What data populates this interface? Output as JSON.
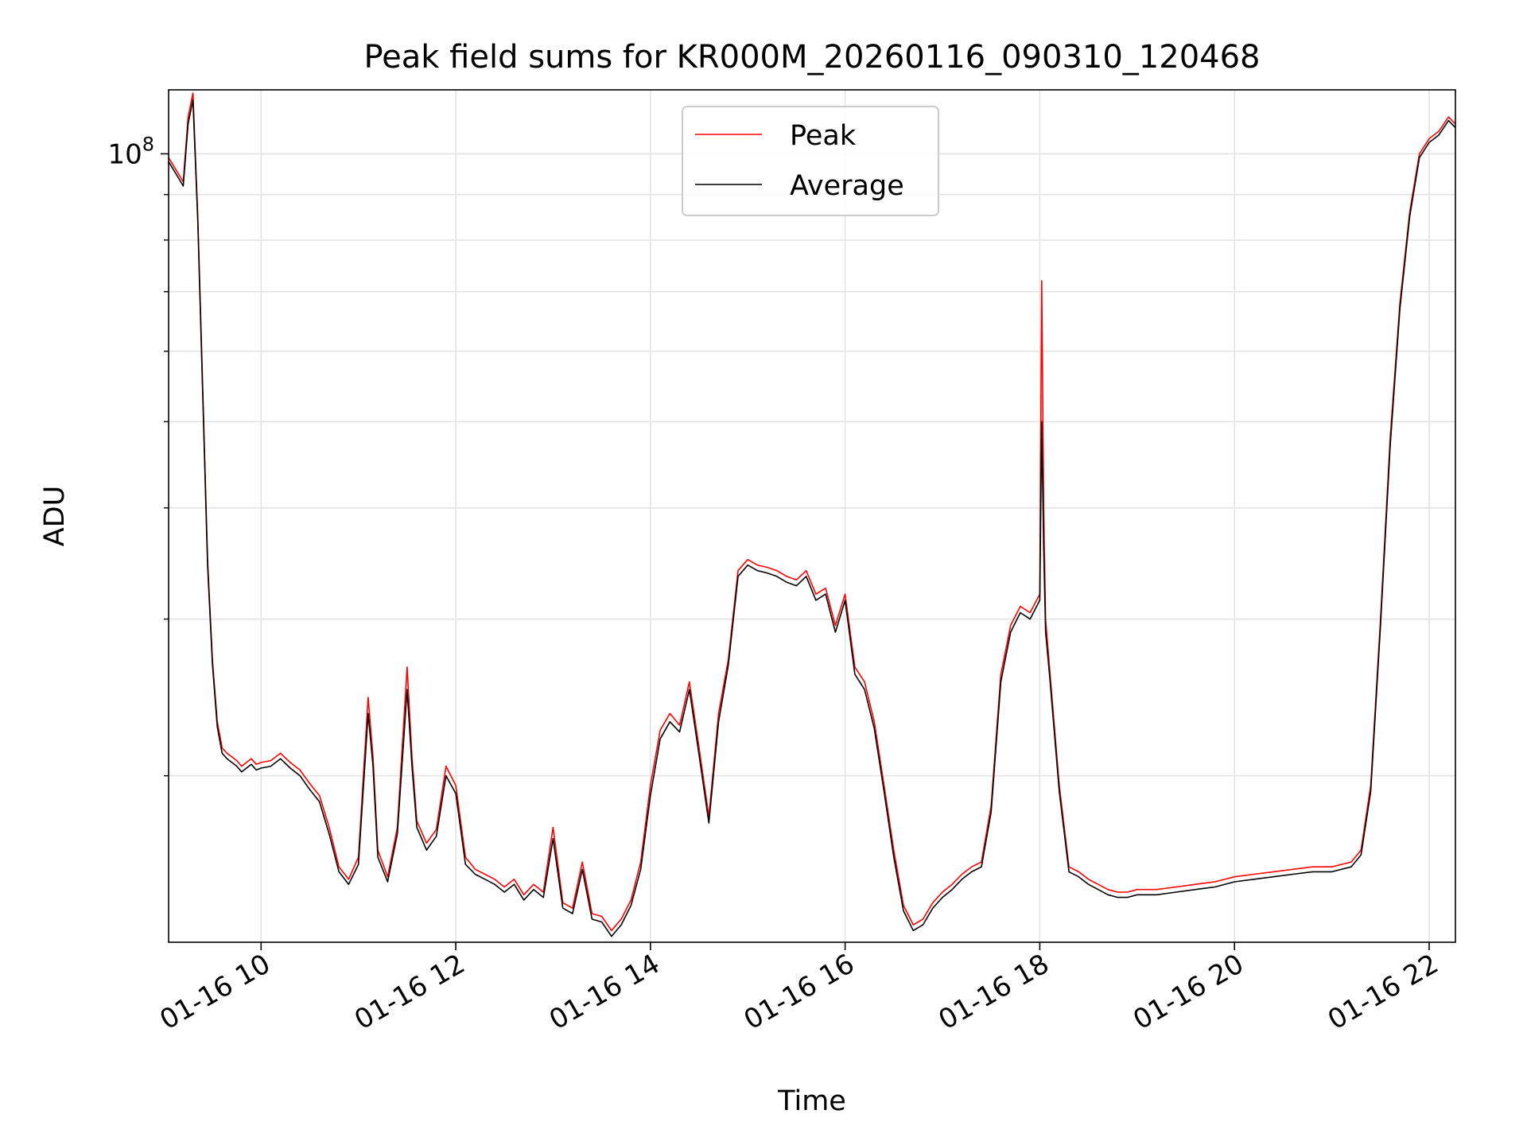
{
  "chart_data": {
    "type": "line",
    "title": "Peak field sums for KR000M_20260116_090310_120468",
    "xlabel": "Time",
    "ylabel": "ADU",
    "y_scale": "log",
    "ylim": [
      13000000,
      118000000
    ],
    "xlim_hours": [
      9.05,
      22.27
    ],
    "grid": true,
    "legend_position": "upper-center",
    "x_ticks": [
      {
        "hour": 10,
        "label": "01-16 10"
      },
      {
        "hour": 12,
        "label": "01-16 12"
      },
      {
        "hour": 14,
        "label": "01-16 14"
      },
      {
        "hour": 16,
        "label": "01-16 16"
      },
      {
        "hour": 18,
        "label": "01-16 18"
      },
      {
        "hour": 20,
        "label": "01-16 20"
      },
      {
        "hour": 22,
        "label": "01-16 22"
      }
    ],
    "y_major_ticks": [
      {
        "value": 100000000,
        "base": "10",
        "exp": "8"
      }
    ],
    "y_minor_grid": [
      20000000,
      30000000,
      40000000,
      50000000,
      60000000,
      70000000,
      80000000,
      90000000
    ],
    "series": [
      {
        "name": "Peak",
        "color": "#ff0000",
        "hours": [
          9.05,
          9.1,
          9.15,
          9.2,
          9.25,
          9.3,
          9.35,
          9.4,
          9.45,
          9.5,
          9.55,
          9.6,
          9.65,
          9.7,
          9.75,
          9.8,
          9.85,
          9.9,
          9.95,
          10.0,
          10.1,
          10.2,
          10.3,
          10.4,
          10.5,
          10.6,
          10.7,
          10.8,
          10.9,
          11.0,
          11.1,
          11.15,
          11.2,
          11.3,
          11.4,
          11.5,
          11.55,
          11.6,
          11.7,
          11.8,
          11.9,
          12.0,
          12.1,
          12.2,
          12.3,
          12.4,
          12.5,
          12.6,
          12.7,
          12.8,
          12.9,
          13.0,
          13.1,
          13.2,
          13.3,
          13.4,
          13.5,
          13.6,
          13.7,
          13.8,
          13.9,
          14.0,
          14.1,
          14.2,
          14.3,
          14.4,
          14.5,
          14.6,
          14.7,
          14.8,
          14.9,
          15.0,
          15.1,
          15.2,
          15.3,
          15.4,
          15.5,
          15.6,
          15.7,
          15.8,
          15.9,
          16.0,
          16.1,
          16.2,
          16.3,
          16.4,
          16.5,
          16.6,
          16.7,
          16.8,
          16.9,
          17.0,
          17.1,
          17.2,
          17.3,
          17.4,
          17.5,
          17.6,
          17.7,
          17.8,
          17.9,
          18.0,
          18.02,
          18.04,
          18.06,
          18.1,
          18.2,
          18.3,
          18.4,
          18.5,
          18.6,
          18.7,
          18.8,
          18.9,
          19.0,
          19.2,
          19.4,
          19.6,
          19.8,
          20.0,
          20.2,
          20.4,
          20.6,
          20.8,
          21.0,
          21.2,
          21.3,
          21.4,
          21.5,
          21.6,
          21.7,
          21.8,
          21.9,
          22.0,
          22.1,
          22.2,
          22.27
        ],
        "values": [
          99000000,
          97000000,
          95000000,
          93000000,
          110000000,
          117000000,
          85000000,
          55000000,
          35000000,
          27000000,
          23000000,
          21500000,
          21200000,
          21000000,
          20800000,
          20500000,
          20700000,
          20900000,
          20600000,
          20700000,
          20800000,
          21200000,
          20700000,
          20300000,
          19600000,
          19000000,
          17500000,
          15800000,
          15300000,
          16200000,
          24500000,
          21000000,
          16500000,
          15400000,
          17500000,
          26500000,
          21000000,
          17800000,
          16800000,
          17400000,
          20500000,
          19500000,
          16200000,
          15700000,
          15500000,
          15300000,
          15000000,
          15300000,
          14700000,
          15100000,
          14800000,
          17500000,
          14400000,
          14200000,
          16000000,
          14000000,
          13900000,
          13400000,
          13800000,
          14500000,
          16000000,
          19500000,
          22500000,
          23500000,
          22800000,
          25500000,
          21500000,
          18000000,
          23500000,
          27000000,
          34000000,
          35000000,
          34500000,
          34300000,
          34000000,
          33500000,
          33200000,
          34000000,
          32000000,
          32500000,
          29500000,
          32000000,
          26500000,
          25500000,
          23000000,
          19500000,
          16500000,
          14300000,
          13600000,
          13800000,
          14400000,
          14800000,
          15100000,
          15500000,
          15800000,
          16000000,
          18500000,
          26000000,
          29500000,
          31000000,
          30500000,
          32000000,
          72000000,
          40000000,
          30000000,
          26500000,
          19500000,
          15800000,
          15600000,
          15300000,
          15100000,
          14900000,
          14800000,
          14800000,
          14900000,
          14900000,
          15000000,
          15100000,
          15200000,
          15400000,
          15500000,
          15600000,
          15700000,
          15800000,
          15800000,
          16000000,
          16500000,
          19500000,
          30000000,
          48000000,
          68000000,
          86000000,
          100000000,
          104000000,
          106000000,
          110000000,
          108000000
        ]
      },
      {
        "name": "Average",
        "color": "#000000",
        "hours": [
          9.05,
          9.1,
          9.15,
          9.2,
          9.25,
          9.3,
          9.35,
          9.4,
          9.45,
          9.5,
          9.55,
          9.6,
          9.65,
          9.7,
          9.75,
          9.8,
          9.85,
          9.9,
          9.95,
          10.0,
          10.1,
          10.2,
          10.3,
          10.4,
          10.5,
          10.6,
          10.7,
          10.8,
          10.9,
          11.0,
          11.1,
          11.15,
          11.2,
          11.3,
          11.4,
          11.5,
          11.55,
          11.6,
          11.7,
          11.8,
          11.9,
          12.0,
          12.1,
          12.2,
          12.3,
          12.4,
          12.5,
          12.6,
          12.7,
          12.8,
          12.9,
          13.0,
          13.1,
          13.2,
          13.3,
          13.4,
          13.5,
          13.6,
          13.7,
          13.8,
          13.9,
          14.0,
          14.1,
          14.2,
          14.3,
          14.4,
          14.5,
          14.6,
          14.7,
          14.8,
          14.9,
          15.0,
          15.1,
          15.2,
          15.3,
          15.4,
          15.5,
          15.6,
          15.7,
          15.8,
          15.9,
          16.0,
          16.1,
          16.2,
          16.3,
          16.4,
          16.5,
          16.6,
          16.7,
          16.8,
          16.9,
          17.0,
          17.1,
          17.2,
          17.3,
          17.4,
          17.5,
          17.6,
          17.7,
          17.8,
          17.9,
          18.0,
          18.02,
          18.04,
          18.06,
          18.1,
          18.2,
          18.3,
          18.4,
          18.5,
          18.6,
          18.7,
          18.8,
          18.9,
          19.0,
          19.2,
          19.4,
          19.6,
          19.8,
          20.0,
          20.2,
          20.4,
          20.6,
          20.8,
          21.0,
          21.2,
          21.3,
          21.4,
          21.5,
          21.6,
          21.7,
          21.8,
          21.9,
          22.0,
          22.1,
          22.2,
          22.27
        ],
        "values": [
          98000000,
          96000000,
          94000000,
          92000000,
          108000000,
          115000000,
          84000000,
          54000000,
          34500000,
          26700000,
          22700000,
          21200000,
          20900000,
          20700000,
          20500000,
          20200000,
          20400000,
          20600000,
          20300000,
          20400000,
          20500000,
          20900000,
          20400000,
          20000000,
          19300000,
          18700000,
          17200000,
          15600000,
          15100000,
          15900000,
          23500000,
          20500000,
          16200000,
          15200000,
          17200000,
          25000000,
          20500000,
          17500000,
          16500000,
          17100000,
          20000000,
          19100000,
          15900000,
          15500000,
          15300000,
          15100000,
          14800000,
          15100000,
          14500000,
          14900000,
          14600000,
          17000000,
          14200000,
          14000000,
          15700000,
          13800000,
          13700000,
          13200000,
          13600000,
          14300000,
          15700000,
          19000000,
          22000000,
          23000000,
          22400000,
          25000000,
          21100000,
          17700000,
          23000000,
          26600000,
          33500000,
          34500000,
          34000000,
          33800000,
          33500000,
          33000000,
          32700000,
          33500000,
          31500000,
          32000000,
          29000000,
          31500000,
          26000000,
          25000000,
          22600000,
          19200000,
          16200000,
          14100000,
          13400000,
          13600000,
          14200000,
          14600000,
          14900000,
          15300000,
          15600000,
          15800000,
          18200000,
          25500000,
          29000000,
          30500000,
          30000000,
          31500000,
          50000000,
          36000000,
          29000000,
          26000000,
          19200000,
          15600000,
          15400000,
          15100000,
          14900000,
          14700000,
          14600000,
          14600000,
          14700000,
          14700000,
          14800000,
          14900000,
          15000000,
          15200000,
          15300000,
          15400000,
          15500000,
          15600000,
          15600000,
          15800000,
          16300000,
          19200000,
          29500000,
          47000000,
          67000000,
          85000000,
          99000000,
          103000000,
          105000000,
          109000000,
          107000000
        ]
      }
    ]
  }
}
